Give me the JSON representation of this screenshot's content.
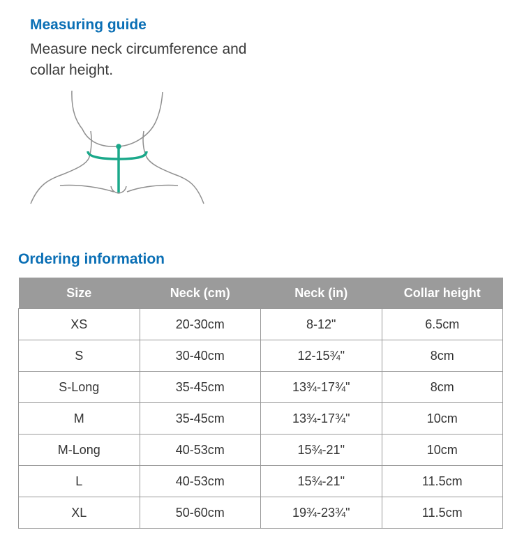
{
  "guide": {
    "title": "Measuring guide",
    "text": "Measure neck circumference and collar height.",
    "accent_color": "#1aa88a"
  },
  "ordering": {
    "title": "Ordering information",
    "headers": [
      "Size",
      "Neck (cm)",
      "Neck (in)",
      "Collar height"
    ],
    "rows": [
      [
        "XS",
        "20-30cm",
        "8-12\"",
        "6.5cm"
      ],
      [
        "S",
        "30-40cm",
        "12-15¾\"",
        "8cm"
      ],
      [
        "S-Long",
        "35-45cm",
        "13¾-17¾\"",
        "8cm"
      ],
      [
        "M",
        "35-45cm",
        "13¾-17¾\"",
        "10cm"
      ],
      [
        "M-Long",
        "40-53cm",
        "15¾-21\"",
        "10cm"
      ],
      [
        "L",
        "40-53cm",
        "15¾-21\"",
        "11.5cm"
      ],
      [
        "XL",
        "50-60cm",
        "19¾-23¾\"",
        "11.5cm"
      ]
    ]
  }
}
